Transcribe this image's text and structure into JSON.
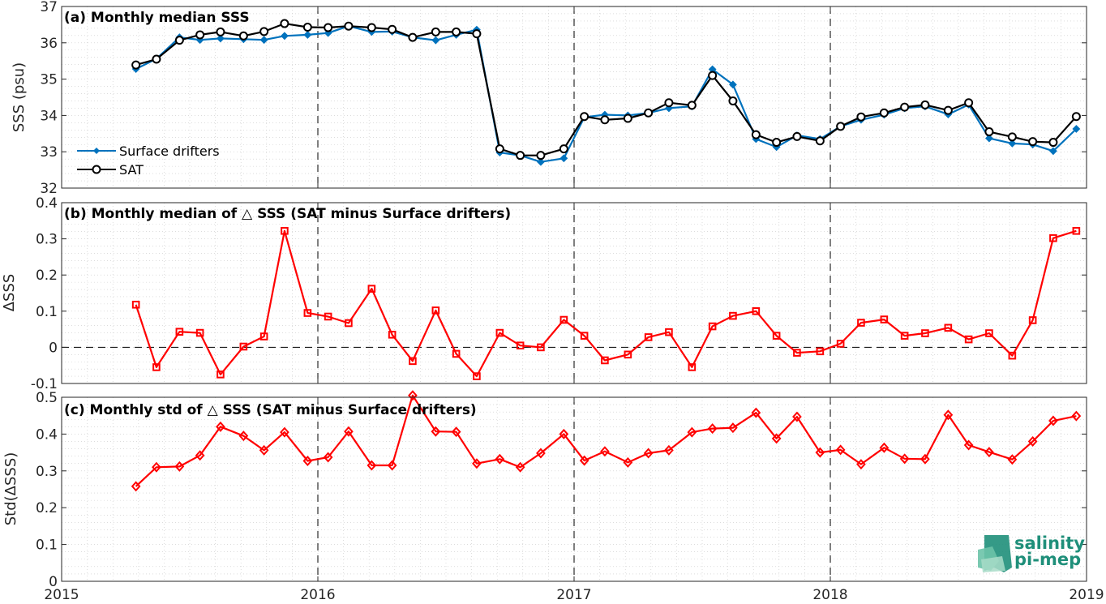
{
  "chart_data": [
    {
      "type": "line",
      "title": "(a) Monthly median SSS",
      "ylabel": "SSS (psu)",
      "xlim": [
        2015,
        2019
      ],
      "ylim": [
        32,
        37
      ],
      "xticks": [
        "2015",
        "2016",
        "2017",
        "2018",
        "2019"
      ],
      "yticks": [
        "32",
        "33",
        "34",
        "35",
        "36",
        "37"
      ],
      "grid": "on",
      "legend_position": "bottom-left",
      "x": [
        2015.29,
        2015.37,
        2015.46,
        2015.54,
        2015.62,
        2015.71,
        2015.79,
        2015.87,
        2015.96,
        2016.04,
        2016.12,
        2016.21,
        2016.29,
        2016.37,
        2016.46,
        2016.54,
        2016.62,
        2016.71,
        2016.79,
        2016.87,
        2016.96,
        2017.04,
        2017.12,
        2017.21,
        2017.29,
        2017.37,
        2017.46,
        2017.54,
        2017.62,
        2017.71,
        2017.79,
        2017.87,
        2017.96,
        2018.04,
        2018.12,
        2018.21,
        2018.29,
        2018.37,
        2018.46,
        2018.54,
        2018.62,
        2018.71,
        2018.79,
        2018.87,
        2018.96
      ],
      "series": [
        {
          "name": "Surface drifters",
          "color": "#0072bd",
          "marker": "diamond",
          "values": [
            35.28,
            35.56,
            36.15,
            36.08,
            36.12,
            36.1,
            36.08,
            36.19,
            36.22,
            36.27,
            36.46,
            36.3,
            36.31,
            36.15,
            36.07,
            36.22,
            36.36,
            32.98,
            32.9,
            32.72,
            32.82,
            33.95,
            34.02,
            34.0,
            34.07,
            34.2,
            34.25,
            35.27,
            34.85,
            33.35,
            33.13,
            33.45,
            33.35,
            33.7,
            33.88,
            34.02,
            34.2,
            34.25,
            34.03,
            34.3,
            33.37,
            33.23,
            33.2,
            33.02,
            33.63
          ]
        },
        {
          "name": "SAT",
          "color": "#000000",
          "marker": "circle",
          "values": [
            35.39,
            35.55,
            36.07,
            36.22,
            36.3,
            36.19,
            36.31,
            36.53,
            36.43,
            36.42,
            36.46,
            36.42,
            36.37,
            36.15,
            36.3,
            36.3,
            36.25,
            33.08,
            32.9,
            32.9,
            33.08,
            33.97,
            33.88,
            33.92,
            34.07,
            34.35,
            34.28,
            35.1,
            34.4,
            33.47,
            33.26,
            33.42,
            33.3,
            33.7,
            33.96,
            34.07,
            34.23,
            34.29,
            34.14,
            34.35,
            33.55,
            33.41,
            33.28,
            33.26,
            33.97
          ]
        }
      ]
    },
    {
      "type": "line",
      "title": "(b) Monthly median of △ SSS (SAT minus Surface drifters)",
      "ylabel": "ΔSSS",
      "xlim": [
        2015,
        2019
      ],
      "ylim": [
        -0.1,
        0.4
      ],
      "xticks": [
        "2015",
        "2016",
        "2017",
        "2018",
        "2019"
      ],
      "yticks": [
        "-0.1",
        "0",
        "0.1",
        "0.2",
        "0.3",
        "0.4"
      ],
      "grid": "on",
      "zero_line": "dashed",
      "x": [
        2015.29,
        2015.37,
        2015.46,
        2015.54,
        2015.62,
        2015.71,
        2015.79,
        2015.87,
        2015.96,
        2016.04,
        2016.12,
        2016.21,
        2016.29,
        2016.37,
        2016.46,
        2016.54,
        2016.62,
        2016.71,
        2016.79,
        2016.87,
        2016.96,
        2017.04,
        2017.12,
        2017.21,
        2017.29,
        2017.37,
        2017.46,
        2017.54,
        2017.62,
        2017.71,
        2017.79,
        2017.87,
        2017.96,
        2018.04,
        2018.12,
        2018.21,
        2018.29,
        2018.37,
        2018.46,
        2018.54,
        2018.62,
        2018.71,
        2018.79,
        2018.87,
        2018.96
      ],
      "series": [
        {
          "color": "#ff0000",
          "marker": "square",
          "values": [
            0.118,
            -0.055,
            0.043,
            0.04,
            -0.075,
            0.002,
            0.03,
            0.322,
            0.095,
            0.085,
            0.067,
            0.162,
            0.035,
            -0.038,
            0.102,
            -0.018,
            -0.08,
            0.04,
            0.005,
            0.0,
            0.076,
            0.032,
            -0.036,
            -0.02,
            0.028,
            0.042,
            -0.055,
            0.058,
            0.087,
            0.1,
            0.032,
            -0.015,
            -0.011,
            0.01,
            0.068,
            0.077,
            0.032,
            0.039,
            0.054,
            0.022,
            0.039,
            -0.023,
            0.075,
            0.302,
            0.322
          ]
        }
      ]
    },
    {
      "type": "line",
      "title": "(c) Monthly std of △ SSS (SAT minus Surface drifters)",
      "ylabel": "Std(ΔSSS)",
      "xlim": [
        2015,
        2019
      ],
      "ylim": [
        0,
        0.5
      ],
      "xticks": [
        "2015",
        "2016",
        "2017",
        "2018",
        "2019"
      ],
      "yticks": [
        "0",
        "0.1",
        "0.2",
        "0.3",
        "0.4",
        "0.5"
      ],
      "grid": "on",
      "x": [
        2015.29,
        2015.37,
        2015.46,
        2015.54,
        2015.62,
        2015.71,
        2015.79,
        2015.87,
        2015.96,
        2016.04,
        2016.12,
        2016.21,
        2016.29,
        2016.37,
        2016.46,
        2016.54,
        2016.62,
        2016.71,
        2016.79,
        2016.87,
        2016.96,
        2017.04,
        2017.12,
        2017.21,
        2017.29,
        2017.37,
        2017.46,
        2017.54,
        2017.62,
        2017.71,
        2017.79,
        2017.87,
        2017.96,
        2018.04,
        2018.12,
        2018.21,
        2018.29,
        2018.37,
        2018.46,
        2018.54,
        2018.62,
        2018.71,
        2018.79,
        2018.87,
        2018.96
      ],
      "series": [
        {
          "color": "#ff0000",
          "marker": "diamond",
          "values": [
            0.258,
            0.31,
            0.312,
            0.342,
            0.42,
            0.395,
            0.356,
            0.405,
            0.327,
            0.337,
            0.407,
            0.315,
            0.315,
            0.505,
            0.407,
            0.406,
            0.32,
            0.332,
            0.31,
            0.348,
            0.4,
            0.328,
            0.353,
            0.323,
            0.348,
            0.356,
            0.405,
            0.415,
            0.417,
            0.458,
            0.388,
            0.447,
            0.35,
            0.357,
            0.318,
            0.363,
            0.333,
            0.332,
            0.452,
            0.37,
            0.351,
            0.331,
            0.38,
            0.436,
            0.449
          ]
        }
      ]
    }
  ],
  "logo": {
    "line1": "salinity",
    "line2": "pi-mep",
    "color": "#1f8f7a"
  }
}
